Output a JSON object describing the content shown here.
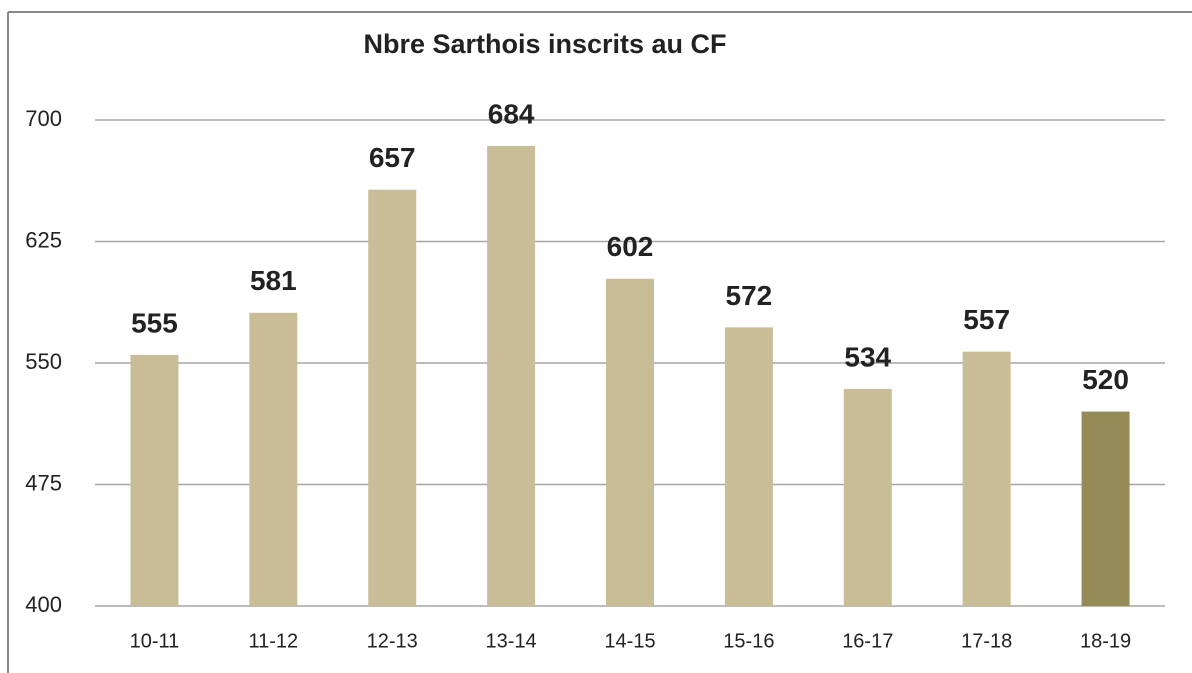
{
  "chart_data": {
    "type": "bar",
    "title": "Nbre Sarthois inscrits au CF",
    "categories": [
      "10-11",
      "11-12",
      "12-13",
      "13-14",
      "14-15",
      "15-16",
      "16-17",
      "17-18",
      "18-19"
    ],
    "values": [
      555,
      581,
      657,
      684,
      602,
      572,
      534,
      557,
      520
    ],
    "colors": [
      "#c9bd98",
      "#c9bd98",
      "#c9bd98",
      "#c9bd98",
      "#c9bd98",
      "#c9bd98",
      "#c9bd98",
      "#c9bd98",
      "#958b56"
    ],
    "ylim": [
      400,
      700
    ],
    "yticks": [
      400,
      475,
      550,
      625,
      700
    ],
    "grid": true
  }
}
